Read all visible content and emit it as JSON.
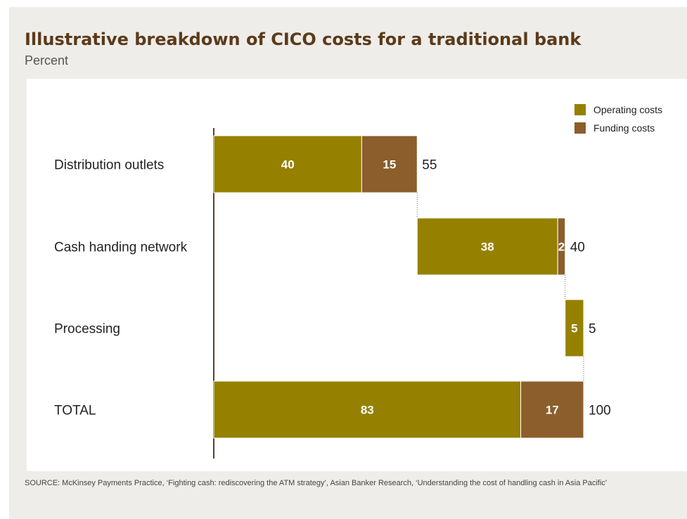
{
  "title": "Illustrative breakdown of CICO costs for a traditional bank",
  "subtitle": "Percent",
  "source": "SOURCE: McKinsey Payments Practice, ‘Fighting cash: rediscovering the ATM strategy’, Asian Banker Research, ‘Understanding the cost of handling cash in Asia Pacific’",
  "colors": {
    "operating": "#968000",
    "funding": "#8b5e2b",
    "axis": "#5b4320"
  },
  "chart_data": {
    "type": "bar",
    "orientation": "horizontal",
    "stacked": true,
    "waterfall": true,
    "title": "Illustrative breakdown of CICO costs for a traditional bank",
    "subtitle": "Percent",
    "categories": [
      "Distribution outlets",
      "Cash handing network",
      "Processing",
      "TOTAL"
    ],
    "series": [
      {
        "name": "Operating costs",
        "values": [
          40,
          38,
          5,
          83
        ]
      },
      {
        "name": "Funding costs",
        "values": [
          15,
          2,
          0,
          17
        ]
      }
    ],
    "totals": [
      55,
      40,
      5,
      100
    ],
    "segment_labels": [
      [
        "40",
        "15"
      ],
      [
        "38",
        "2"
      ],
      [
        "5",
        ""
      ],
      [
        "83",
        "17"
      ]
    ],
    "total_labels": [
      "55",
      "40",
      "5",
      "100"
    ],
    "xlim": [
      0,
      100
    ],
    "legend_position": "top-right",
    "grid": false
  }
}
